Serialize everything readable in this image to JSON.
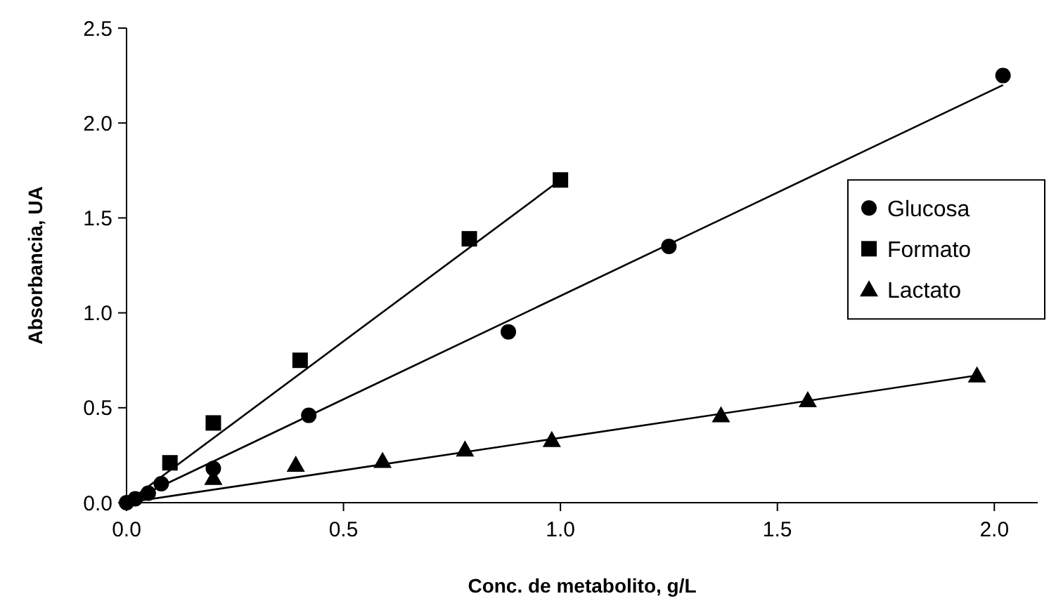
{
  "chart_data": {
    "type": "scatter",
    "xlabel": "Conc. de metabolito, g/L",
    "ylabel": "Absorbancia, UA",
    "xlim": [
      0,
      2.1
    ],
    "ylim": [
      0,
      2.5
    ],
    "xticks": [
      {
        "value": 0,
        "label": "0.0"
      },
      0.5,
      {
        "value": 1,
        "label": "1.0"
      },
      1.5,
      {
        "value": 2,
        "label": "2.0"
      }
    ],
    "yticks": [
      {
        "value": 0,
        "label": "0.0"
      },
      0.5,
      {
        "value": 1,
        "label": "1.0"
      },
      1.5,
      {
        "value": 2,
        "label": "2.0"
      },
      2.5
    ],
    "grid": false,
    "legend": "right",
    "series": [
      {
        "name": "Glucosa",
        "marker": "circle",
        "color": "#000000",
        "x": [
          0,
          0.02,
          0.05,
          0.08,
          0.2,
          0.42,
          0.88,
          1.25,
          2.02
        ],
        "values": [
          0,
          0.02,
          0.05,
          0.1,
          0.18,
          0.46,
          0.9,
          1.35,
          2.25
        ]
      },
      {
        "name": "Formato",
        "marker": "square",
        "color": "#000000",
        "x": [
          0.1,
          0.2,
          0.4,
          0.79,
          1.0
        ],
        "values": [
          0.21,
          0.42,
          0.75,
          1.39,
          1.7
        ]
      },
      {
        "name": "Lactato",
        "marker": "triangle",
        "color": "#000000",
        "x": [
          0.2,
          0.39,
          0.59,
          0.78,
          0.98,
          1.37,
          1.57,
          1.96
        ],
        "values": [
          0.13,
          0.2,
          0.22,
          0.28,
          0.33,
          0.46,
          0.54,
          0.67
        ]
      },
      {
        "type": "line",
        "marker": "none",
        "color": "#000000",
        "x": [
          0,
          2.02
        ],
        "values": [
          0,
          2.2
        ]
      },
      {
        "type": "line",
        "marker": "none",
        "color": "#000000",
        "x": [
          0,
          1.0
        ],
        "values": [
          0,
          1.7
        ]
      },
      {
        "type": "line",
        "marker": "none",
        "color": "#000000",
        "x": [
          0,
          1.96
        ],
        "values": [
          0,
          0.67
        ]
      }
    ]
  }
}
